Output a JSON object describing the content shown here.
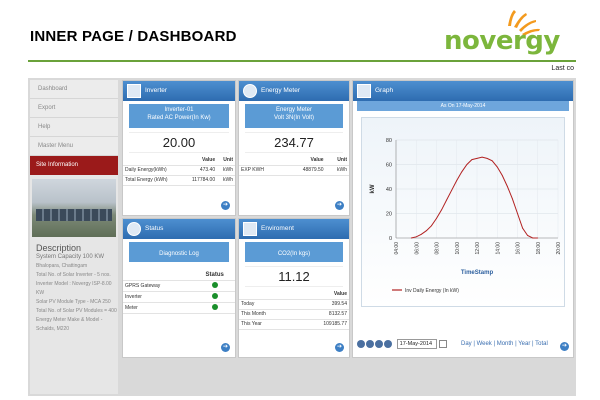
{
  "slide": {
    "title": "INNER PAGE / DASHBOARD"
  },
  "logo": {
    "text": "novergy"
  },
  "topbar": {
    "right_text": "Last co"
  },
  "sidebar": {
    "items": [
      {
        "label": "Dashboard"
      },
      {
        "label": "Export"
      },
      {
        "label": "Help"
      },
      {
        "label": "Master Menu"
      }
    ],
    "site_info": "Site Information",
    "description_heading": "Description",
    "capacity": "System Capacity 100 KW",
    "lines": [
      "Bhalopara, Chattingam",
      "Total No. of Solar Inverter - 5 nos.",
      "Inverter Model : Novergy ISP-8.00 KW",
      "Solar PV Module Type - MCA 250",
      "Total No. of Solar PV Modules = 400",
      "Energy Meter Make & Model - Schalds, M220"
    ]
  },
  "inverter": {
    "title": "Inverter",
    "sub1": "Inverter-01",
    "sub2": "Rated AC Power(In Kw)",
    "value": "20.00",
    "col_value": "Value",
    "col_unit": "Unit",
    "rows": [
      {
        "label": "Daily Energy(kWh)",
        "value": "473.40",
        "unit": "kWh"
      },
      {
        "label": "Total Energy (kWh)",
        "value": "117784.00",
        "unit": "kWh"
      }
    ]
  },
  "meter": {
    "title": "Energy Meter",
    "sub1": "Energy Meter",
    "sub2": "Volt 3N(In Volt)",
    "value": "234.77",
    "col_value": "Value",
    "col_unit": "Unit",
    "rows": [
      {
        "label": "EXP KWH",
        "value": "48879.50",
        "unit": "kWh"
      }
    ]
  },
  "status": {
    "title": "Status",
    "sub": "Diagnostic Log",
    "col": "Status",
    "rows": [
      {
        "label": "GPRS Gateway"
      },
      {
        "label": "Inverter"
      },
      {
        "label": "Meter"
      }
    ]
  },
  "environment": {
    "title": "Enviroment",
    "sub": "CO2(In kgs)",
    "value": "11.12",
    "col_value": "Value",
    "rows": [
      {
        "label": "Today",
        "value": "399.54"
      },
      {
        "label": "This Month",
        "value": "8132.57"
      },
      {
        "label": "This Year",
        "value": "109185.77"
      }
    ]
  },
  "graph": {
    "title": "Graph",
    "as_on": "As On 17-May-2014",
    "date": "17-May-2014",
    "periods": {
      "day": "Day",
      "week": "Week",
      "month": "Month",
      "year": "Year",
      "total": "Total"
    },
    "sep": "|"
  },
  "chart_data": {
    "type": "line",
    "xlabel": "TimeStamp",
    "ylabel": "kW",
    "ylim": [
      0,
      80
    ],
    "yticks": [
      0,
      20,
      40,
      60,
      80
    ],
    "xticks": [
      "04:00",
      "06:00",
      "08:00",
      "10:00",
      "12:00",
      "14:00",
      "16:00",
      "18:00",
      "20:00"
    ],
    "xrange": [
      4,
      20
    ],
    "series": [
      {
        "name": "Inv Daily Energy (In kW)",
        "color": "#b22222",
        "x": [
          5.5,
          6,
          6.5,
          7,
          7.5,
          8,
          8.5,
          9,
          9.5,
          10,
          10.5,
          11,
          11.5,
          12,
          12.5,
          13,
          13.5,
          14,
          14.5,
          15,
          15.5,
          16,
          16.5,
          17,
          17.5,
          18
        ],
        "y": [
          0,
          1,
          3,
          6,
          10,
          16,
          23,
          31,
          39,
          47,
          54,
          60,
          64,
          65,
          66,
          65,
          63,
          58,
          51,
          42,
          32,
          20,
          8,
          2,
          0,
          0
        ]
      }
    ],
    "grid": true,
    "legend": "bottom-left"
  }
}
